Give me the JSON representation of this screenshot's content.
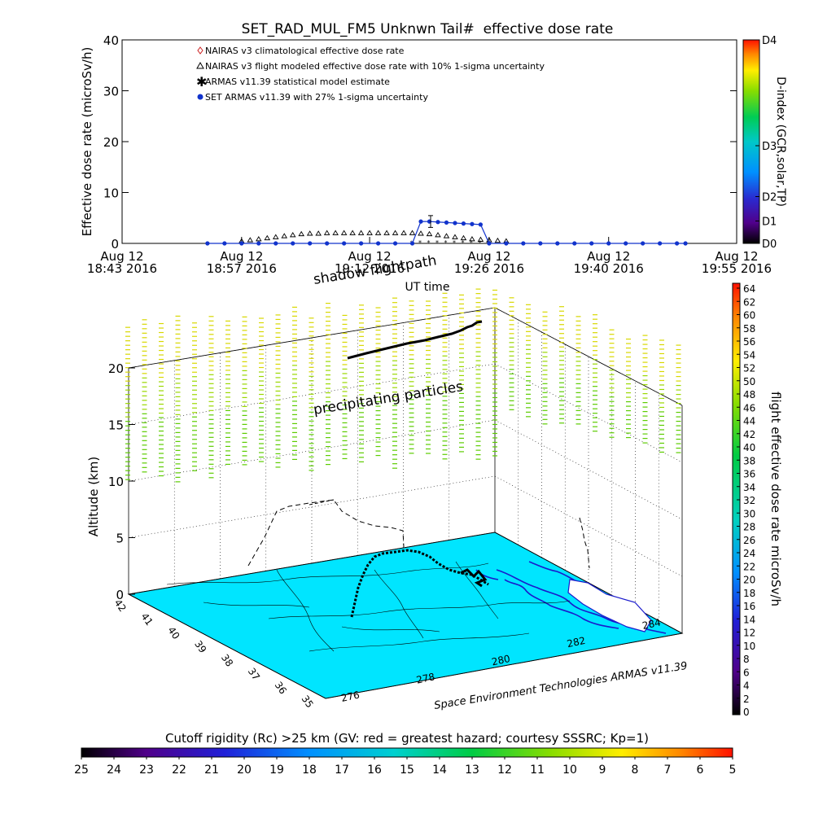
{
  "chart_data": [
    {
      "type": "line",
      "title": "SET_RAD_MUL_FM5 Unknwn Tail#  effective dose rate",
      "ylabel": "Effective dose rate (microSv/h)",
      "xlabel": "UT time",
      "ylim": [
        0,
        40
      ],
      "yticks": [
        "0",
        "10",
        "20",
        "30",
        "40"
      ],
      "xlim": [
        "2016-08-12 18:43",
        "2016-08-12 19:55"
      ],
      "xticks": [
        {
          "t": "2016-08-12 18:43",
          "line1": "Aug 12",
          "line2": "18:43 2016"
        },
        {
          "t": "2016-08-12 18:57",
          "line1": "Aug 12",
          "line2": "18:57 2016"
        },
        {
          "t": "2016-08-12 19:12",
          "line1": "Aug 12",
          "line2": "19:12 2016"
        },
        {
          "t": "2016-08-12 19:26",
          "line1": "Aug 12",
          "line2": "19:26 2016"
        },
        {
          "t": "2016-08-12 19:40",
          "line1": "Aug 12",
          "line2": "19:40 2016"
        },
        {
          "t": "2016-08-12 19:55",
          "line1": "Aug 12",
          "line2": "19:55 2016"
        }
      ],
      "legend": [
        {
          "label": "NAIRAS v3 climatological effective dose rate",
          "marker": "diamond",
          "color": "#cc2222"
        },
        {
          "label": "NAIRAS v3 flight modeled effective dose rate with 10% 1-sigma uncertainty",
          "marker": "triangle",
          "color": "#000000"
        },
        {
          "label": "ARMAS v11.39 statistical model estimate",
          "marker": "asterisk",
          "color": "#22cc22"
        },
        {
          "label": "SET ARMAS v11.39 with 27% 1-sigma uncertainty",
          "marker": "dot",
          "color": "#1133cc"
        }
      ],
      "series": [
        {
          "name": "NAIRAS v3 flight modeled effective dose rate with 10% 1-sigma uncertainty",
          "x": [
            "18:57",
            "18:58",
            "18:59",
            "19:00",
            "19:01",
            "19:02",
            "19:03",
            "19:04",
            "19:05",
            "19:06",
            "19:07",
            "19:08",
            "19:09",
            "19:10",
            "19:11",
            "19:12",
            "19:13",
            "19:14",
            "19:15",
            "19:16",
            "19:17",
            "19:18",
            "19:19",
            "19:20",
            "19:21",
            "19:22",
            "19:23",
            "19:24",
            "19:25",
            "19:26",
            "19:27",
            "19:28"
          ],
          "y": [
            0.1,
            0.3,
            0.5,
            0.7,
            0.9,
            1.1,
            1.3,
            1.5,
            1.6,
            1.6,
            1.7,
            1.7,
            1.7,
            1.7,
            1.7,
            1.7,
            1.7,
            1.7,
            1.7,
            1.7,
            1.7,
            1.6,
            1.5,
            1.3,
            1.1,
            0.9,
            0.7,
            0.5,
            0.4,
            0.3,
            0.2,
            0.1
          ]
        },
        {
          "name": "SET ARMAS v11.39 with 27% 1-sigma uncertainty",
          "x": [
            "18:53",
            "18:55",
            "18:57",
            "18:59",
            "19:01",
            "19:03",
            "19:05",
            "19:07",
            "19:09",
            "19:11",
            "19:13",
            "19:15",
            "19:17",
            "19:18",
            "19:19",
            "19:20",
            "19:21",
            "19:22",
            "19:23",
            "19:24",
            "19:25",
            "19:26",
            "19:28",
            "19:30",
            "19:32",
            "19:34",
            "19:36",
            "19:38",
            "19:40",
            "19:42",
            "19:44",
            "19:46",
            "19:48",
            "19:49"
          ],
          "y": [
            0,
            0,
            0,
            0,
            0,
            0,
            0,
            0,
            0,
            0,
            0,
            0,
            0,
            4.3,
            4.3,
            4.2,
            4.1,
            4.0,
            3.9,
            3.8,
            3.7,
            0,
            0,
            0,
            0,
            0,
            0,
            0,
            0,
            0,
            0,
            0,
            0,
            0
          ]
        },
        {
          "name": "ARMAS v11.39 statistical model estimate",
          "x": [
            "19:17",
            "19:18",
            "19:19",
            "19:20",
            "19:21",
            "19:22",
            "19:23",
            "19:24",
            "19:25",
            "19:26"
          ],
          "y": [
            0.1,
            0.2,
            0.2,
            0.2,
            0.2,
            0.2,
            0.2,
            0.2,
            0.2,
            0.1
          ]
        }
      ]
    },
    {
      "type": "colorbar",
      "label": "D-index (GCR,solar,TP)",
      "ticks": [
        "D0",
        "D1",
        "D2",
        "D3",
        "D4"
      ]
    },
    {
      "type": "scatter3d",
      "zlabel": "Altitude (km)",
      "zlim": [
        0,
        20
      ],
      "zticks": [
        "0",
        "5",
        "10",
        "15",
        "20"
      ],
      "lat_ticks": [
        "42",
        "41",
        "40",
        "39",
        "38",
        "37",
        "36",
        "35"
      ],
      "lon_ticks": [
        "276",
        "278",
        "280",
        "282",
        "284"
      ],
      "annotations": [
        "shadow flightpath",
        "precipitating particles"
      ],
      "credit": "Space Environment Technologies ARMAS v11.39"
    },
    {
      "type": "colorbar",
      "label": "flight effective dose rate microSv/h",
      "ticks": [
        "0",
        "2",
        "4",
        "6",
        "8",
        "10",
        "12",
        "14",
        "16",
        "18",
        "20",
        "22",
        "24",
        "26",
        "28",
        "30",
        "32",
        "34",
        "36",
        "38",
        "40",
        "42",
        "44",
        "46",
        "48",
        "50",
        "52",
        "54",
        "56",
        "58",
        "60",
        "62",
        "64"
      ]
    },
    {
      "type": "colorbar",
      "label": "Cutoff rigidity (Rc) >25 km (GV: red = greatest hazard; courtesy SSSRC; Kp=1)",
      "ticks": [
        "25",
        "24",
        "23",
        "22",
        "21",
        "20",
        "19",
        "18",
        "17",
        "16",
        "15",
        "14",
        "13",
        "12",
        "11",
        "10",
        "9",
        "8",
        "7",
        "6",
        "5"
      ]
    }
  ],
  "colors": {
    "ocean": "#00e5ff",
    "coast": "#1a1acc",
    "armas": "#1133cc",
    "nairas_flight": "#000000",
    "armas_model": "#22cc22",
    "nairas_clim": "#cc2222"
  }
}
